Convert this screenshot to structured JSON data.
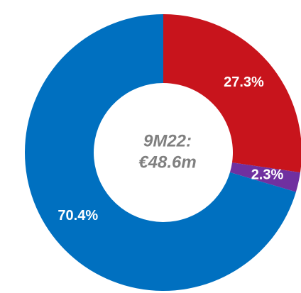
{
  "chart_data": {
    "type": "donut",
    "values": [
      27.3,
      2.3,
      70.4
    ],
    "value_labels": [
      "27.3%",
      "2.3%",
      "70.4%"
    ],
    "colors": [
      "#c8141c",
      "#7030a0",
      "#0070c0"
    ],
    "annotations": [
      "9M22:",
      "€48.6m"
    ]
  }
}
